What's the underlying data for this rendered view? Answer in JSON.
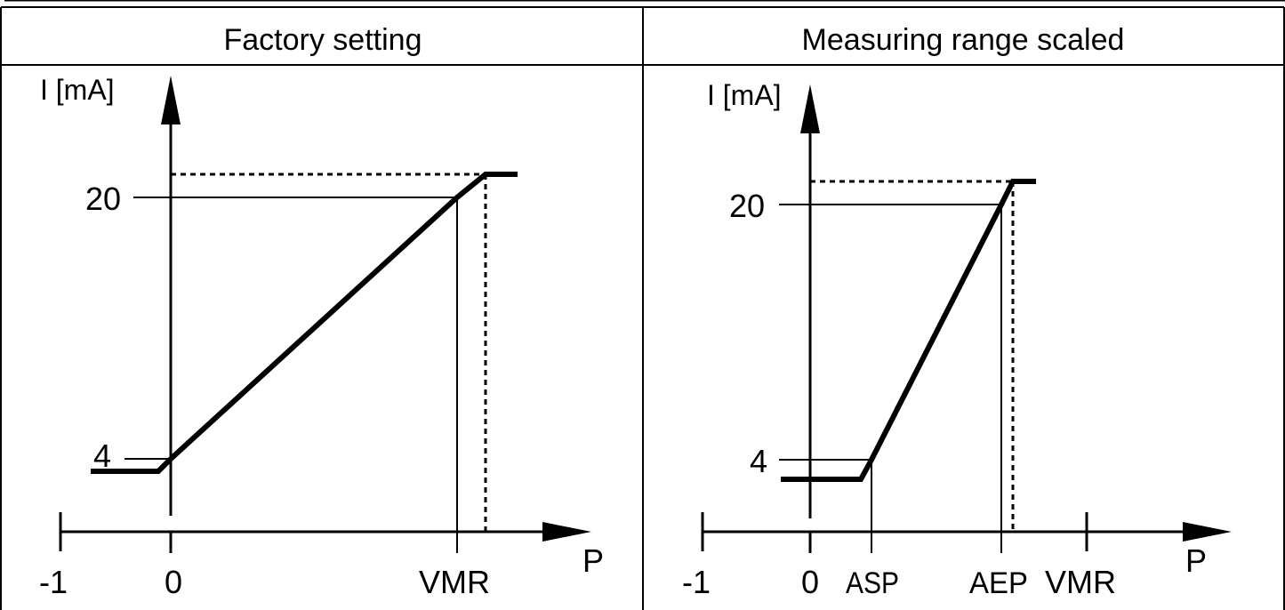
{
  "panels": [
    {
      "title": "Factory setting",
      "y_axis_label": "I [mA]",
      "x_axis_label": "P",
      "y_ticks": [
        "20",
        "4"
      ],
      "x_ticks": [
        "-1",
        "0",
        "VMR"
      ]
    },
    {
      "title": "Measuring range scaled",
      "y_axis_label": "I [mA]",
      "x_axis_label": "P",
      "y_ticks": [
        "20",
        "4"
      ],
      "x_ticks": [
        "-1",
        "0",
        "ASP",
        "AEP",
        "VMR"
      ]
    }
  ],
  "colors": {
    "line": "#000000",
    "background": "#ffffff"
  }
}
